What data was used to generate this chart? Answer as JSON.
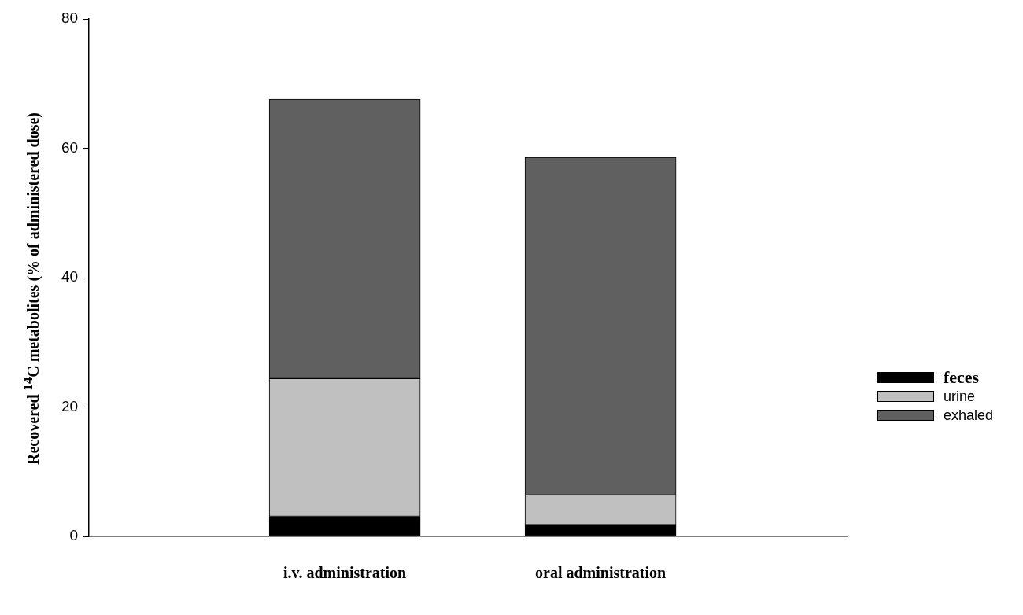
{
  "chart_data": {
    "type": "bar",
    "stacked": true,
    "ylabel": "Recovered $^{14}$C metabolites (% of administered dose)",
    "categories": [
      "i.v. administration",
      "oral administration"
    ],
    "ylim": [
      0,
      80
    ],
    "yticks": [
      0,
      20,
      40,
      60,
      80
    ],
    "grid": false,
    "legend": "right",
    "series": [
      {
        "name": "feces",
        "color": "#000000",
        "values": [
          3.1,
          1.8
        ]
      },
      {
        "name": "urine",
        "color": "#c0c0c0",
        "values": [
          21.3,
          4.6
        ]
      },
      {
        "name": "exhaled",
        "color": "#606060",
        "values": [
          43.2,
          52.2
        ]
      }
    ]
  }
}
